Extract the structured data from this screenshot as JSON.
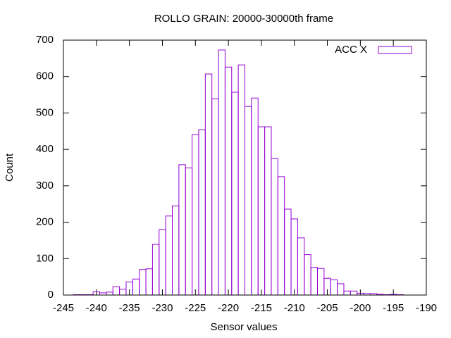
{
  "chart_data": {
    "type": "histogram",
    "title": "ROLLO GRAIN: 20000-30000th frame",
    "x_label": "Sensor values",
    "y_label": "Count",
    "series": [
      {
        "name": "ACC X",
        "color": "#9400d3",
        "bins": [
          -243.5,
          -242.5,
          -241.5,
          -240.5,
          -239.5,
          -238.5,
          -237.5,
          -236.5,
          -235.5,
          -234.5,
          -233.5,
          -232.5,
          -231.5,
          -230.5,
          -229.5,
          -228.5,
          -227.5,
          -226.5,
          -225.5,
          -224.5,
          -223.5,
          -222.5,
          -221.5,
          -220.5,
          -219.5,
          -218.5,
          -217.5,
          -216.5,
          -215.5,
          -214.5,
          -213.5,
          -212.5,
          -211.5,
          -210.5,
          -209.5,
          -208.5,
          -207.5,
          -206.5,
          -205.5,
          -204.5,
          -203.5,
          -202.5,
          -201.5,
          -200.5,
          -199.5,
          -198.5,
          -197.5,
          -196.5,
          -195.5,
          -194.5,
          -193.5
        ],
        "counts": [
          1,
          1,
          1,
          9,
          6,
          8,
          23,
          16,
          36,
          44,
          70,
          72,
          139,
          180,
          217,
          245,
          358,
          349,
          440,
          454,
          607,
          539,
          673,
          626,
          557,
          632,
          518,
          541,
          462,
          462,
          375,
          325,
          236,
          209,
          157,
          111,
          76,
          73,
          46,
          42,
          31,
          11,
          11,
          5,
          4,
          4,
          2,
          1,
          2,
          1
        ]
      }
    ],
    "xlim": [
      -245,
      -190
    ],
    "xticks": [
      -245,
      -240,
      -235,
      -230,
      -225,
      -220,
      -215,
      -210,
      -205,
      -200,
      -195,
      -190
    ],
    "ylim": [
      0,
      700
    ],
    "yticks": [
      0,
      100,
      200,
      300,
      400,
      500,
      600,
      700
    ],
    "legend": "top-right"
  }
}
